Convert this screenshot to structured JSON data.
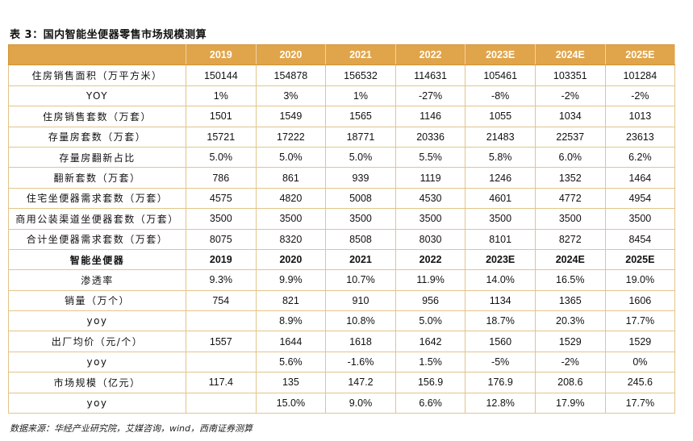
{
  "title": "表 3：国内智能坐便器零售市场规模测算",
  "header": [
    "",
    "2019",
    "2020",
    "2021",
    "2022",
    "2023E",
    "2024E",
    "2025E"
  ],
  "rows1": [
    [
      "住房销售面积（万平方米）",
      "150144",
      "154878",
      "156532",
      "114631",
      "105461",
      "103351",
      "101284"
    ],
    [
      "YOY",
      "1%",
      "3%",
      "1%",
      "-27%",
      "-8%",
      "-2%",
      "-2%"
    ],
    [
      "住房销售套数（万套）",
      "1501",
      "1549",
      "1565",
      "1146",
      "1055",
      "1034",
      "1013"
    ],
    [
      "存量房套数（万套）",
      "15721",
      "17222",
      "18771",
      "20336",
      "21483",
      "22537",
      "23613"
    ],
    [
      "存量房翻新占比",
      "5.0%",
      "5.0%",
      "5.0%",
      "5.5%",
      "5.8%",
      "6.0%",
      "6.2%"
    ],
    [
      "翻新套数（万套）",
      "786",
      "861",
      "939",
      "1119",
      "1246",
      "1352",
      "1464"
    ],
    [
      "住宅坐便器需求套数（万套）",
      "4575",
      "4820",
      "5008",
      "4530",
      "4601",
      "4772",
      "4954"
    ],
    [
      "商用公装渠道坐便器套数（万套）",
      "3500",
      "3500",
      "3500",
      "3500",
      "3500",
      "3500",
      "3500"
    ],
    [
      "合计坐便器需求套数（万套）",
      "8075",
      "8320",
      "8508",
      "8030",
      "8101",
      "8272",
      "8454"
    ]
  ],
  "subheader": [
    "智能坐便器",
    "2019",
    "2020",
    "2021",
    "2022",
    "2023E",
    "2024E",
    "2025E"
  ],
  "rows2": [
    [
      "渗透率",
      "9.3%",
      "9.9%",
      "10.7%",
      "11.9%",
      "14.0%",
      "16.5%",
      "19.0%"
    ],
    [
      "销量（万个）",
      "754",
      "821",
      "910",
      "956",
      "1134",
      "1365",
      "1606"
    ],
    [
      "yoy",
      "",
      "8.9%",
      "10.8%",
      "5.0%",
      "18.7%",
      "20.3%",
      "17.7%"
    ],
    [
      "出厂均价（元/个）",
      "1557",
      "1644",
      "1618",
      "1642",
      "1560",
      "1529",
      "1529"
    ],
    [
      "yoy",
      "",
      "5.6%",
      "-1.6%",
      "1.5%",
      "-5%",
      "-2%",
      "0%"
    ],
    [
      "市场规模（亿元）",
      "117.4",
      "135",
      "147.2",
      "156.9",
      "176.9",
      "208.6",
      "245.6"
    ],
    [
      "yoy",
      "",
      "15.0%",
      "9.0%",
      "6.6%",
      "12.8%",
      "17.9%",
      "17.7%"
    ]
  ],
  "source": "数据来源：华经产业研究院，艾媒咨询，wind，西南证券测算"
}
